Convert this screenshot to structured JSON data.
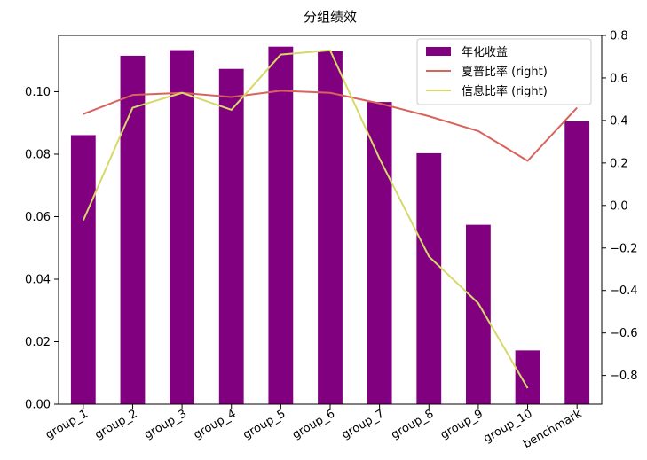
{
  "chart_data": {
    "type": "bar",
    "title": "分组绩效",
    "categories": [
      "group_1",
      "group_2",
      "group_3",
      "group_4",
      "group_5",
      "group_6",
      "group_7",
      "group_8",
      "group_9",
      "group_10",
      "benchmark"
    ],
    "series": [
      {
        "name": "年化收益",
        "kind": "bar",
        "axis": "left",
        "color": "#800080",
        "values": [
          0.0861,
          0.1115,
          0.1133,
          0.1073,
          0.1144,
          0.113,
          0.0967,
          0.0803,
          0.0574,
          0.0172,
          0.0905
        ]
      },
      {
        "name": "夏普比率 (right)",
        "kind": "line",
        "axis": "right",
        "color": "#d9635b",
        "values": [
          0.43,
          0.52,
          0.53,
          0.51,
          0.54,
          0.53,
          0.48,
          0.42,
          0.35,
          0.21,
          0.46
        ]
      },
      {
        "name": "信息比率 (right)",
        "kind": "line",
        "axis": "right",
        "color": "#d6d96a",
        "values": [
          -0.07,
          0.46,
          0.53,
          0.45,
          0.71,
          0.73,
          0.22,
          -0.24,
          -0.46,
          -0.86,
          null
        ]
      }
    ],
    "y_left": {
      "lim": [
        0,
        0.118
      ],
      "ticks": [
        "0.00",
        "0.02",
        "0.04",
        "0.06",
        "0.08",
        "0.10"
      ]
    },
    "y_right": {
      "lim": [
        -0.935,
        0.8
      ],
      "ticks": [
        "0.8",
        "0.6",
        "0.4",
        "0.2",
        "0.0",
        "−0.2",
        "−0.4",
        "−0.6",
        "−0.8"
      ]
    },
    "legend": "top-right",
    "grid": false
  }
}
